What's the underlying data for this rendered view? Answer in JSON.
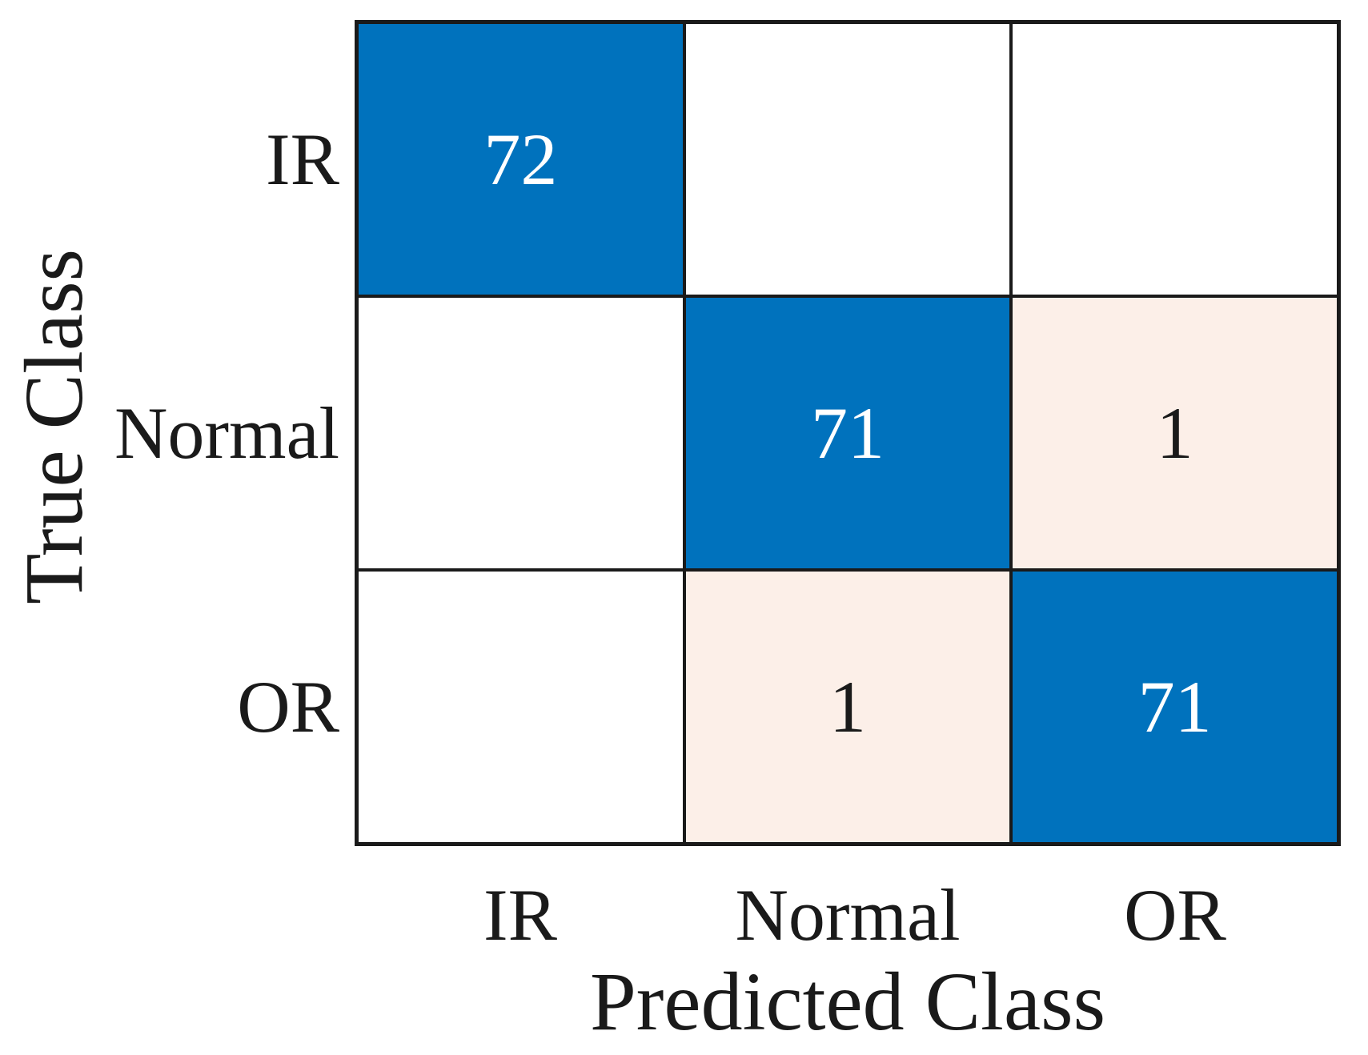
{
  "chart_data": {
    "type": "heatmap",
    "subtype": "confusion_matrix",
    "title": "",
    "xlabel": "Predicted Class",
    "ylabel": "True Class",
    "classes": [
      "IR",
      "Normal",
      "OR"
    ],
    "matrix_rows_true_by_predicted": [
      [
        72,
        0,
        0
      ],
      [
        0,
        71,
        1
      ],
      [
        0,
        1,
        71
      ]
    ],
    "cell_labels": {
      "r0c0": "72",
      "r0c1": "",
      "r0c2": "",
      "r1c0": "",
      "r1c1": "71",
      "r1c2": "1",
      "r2c0": "",
      "r2c1": "1",
      "r2c2": "71"
    },
    "colors": {
      "diagonal_fill": "#0072BD",
      "off_diagonal_nonzero_fill": "#FCEFE8",
      "zero_fill": "#FFFFFF",
      "diagonal_text": "#FFFFFF",
      "off_diagonal_text": "#1A1A1A",
      "grid_line": "#1A1A1A",
      "axis_text": "#1A1A1A"
    },
    "legend": "none",
    "grid": "on",
    "value_range": [
      0,
      72
    ]
  }
}
